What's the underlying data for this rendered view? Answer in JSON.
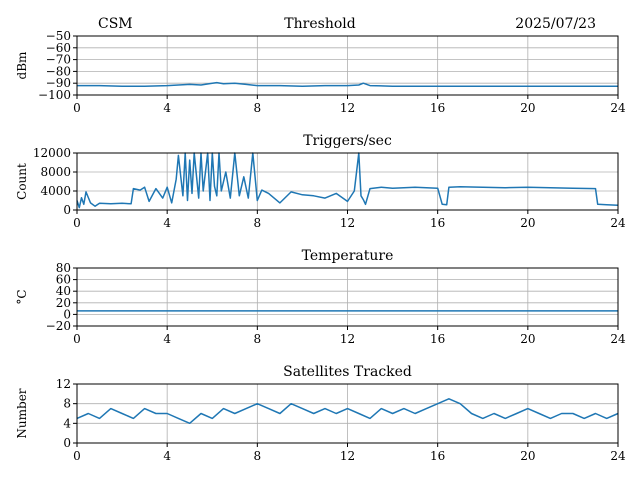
{
  "header": {
    "left": "CSM",
    "center": "Threshold",
    "right": "2025/07/23"
  },
  "line_color": "#1f77b4",
  "grid_color": "#b0b0b0",
  "chart_data": [
    {
      "type": "line",
      "title": "",
      "xlabel": "",
      "ylabel": "dBm",
      "xlim": [
        0,
        24
      ],
      "ylim": [
        -100,
        -50
      ],
      "xticks": [
        "0",
        "4",
        "8",
        "12",
        "16",
        "20",
        "24"
      ],
      "yticks": [
        "−50",
        "−60",
        "−70",
        "−80",
        "−90",
        "−100"
      ],
      "ytick_values": [
        -50,
        -60,
        -70,
        -80,
        -90,
        -100
      ],
      "grid": true,
      "series": [
        {
          "x": [
            0,
            1,
            2,
            3,
            4,
            4.5,
            5,
            5.5,
            6,
            6.2,
            6.5,
            7,
            7.5,
            8,
            9,
            10,
            11,
            12,
            12.5,
            12.7,
            13,
            14,
            15,
            16,
            17,
            18,
            19,
            20,
            21,
            22,
            23,
            24
          ],
          "y": [
            -92,
            -92,
            -92.5,
            -92.5,
            -92,
            -91.5,
            -91,
            -91.5,
            -90,
            -89.5,
            -90.5,
            -90,
            -91,
            -92,
            -92,
            -92.5,
            -92,
            -92,
            -91.5,
            -90,
            -92,
            -92.5,
            -92.5,
            -92.5,
            -92.5,
            -92.5,
            -92.5,
            -92.5,
            -92.5,
            -92.5,
            -92.5,
            -92.5
          ]
        }
      ]
    },
    {
      "type": "line",
      "title": "Triggers/sec",
      "xlabel": "",
      "ylabel": "Count",
      "xlim": [
        0,
        24
      ],
      "ylim": [
        0,
        12000
      ],
      "xticks": [
        "0",
        "4",
        "8",
        "12",
        "16",
        "20",
        "24"
      ],
      "yticks": [
        "0",
        "4000",
        "8000",
        "12000"
      ],
      "ytick_values": [
        0,
        4000,
        8000,
        12000
      ],
      "grid": true,
      "series": [
        {
          "x": [
            0,
            0.1,
            0.2,
            0.3,
            0.4,
            0.6,
            0.8,
            1.0,
            1.5,
            2.0,
            2.4,
            2.5,
            2.8,
            3.0,
            3.2,
            3.5,
            3.8,
            4.0,
            4.2,
            4.4,
            4.5,
            4.7,
            4.8,
            4.9,
            5.0,
            5.1,
            5.2,
            5.4,
            5.5,
            5.6,
            5.8,
            5.9,
            6.0,
            6.1,
            6.2,
            6.3,
            6.4,
            6.6,
            6.8,
            7.0,
            7.2,
            7.4,
            7.6,
            7.8,
            8.0,
            8.2,
            8.5,
            9.0,
            9.5,
            10.0,
            10.5,
            11.0,
            11.5,
            12.0,
            12.3,
            12.5,
            12.6,
            12.7,
            12.8,
            13.0,
            13.5,
            14.0,
            15.0,
            16.0,
            16.2,
            16.4,
            16.5,
            17.0,
            18.0,
            19.0,
            20.0,
            21.0,
            22.0,
            23.0,
            23.1,
            23.5,
            24.0
          ],
          "y": [
            2000,
            500,
            2600,
            1200,
            3800,
            1500,
            800,
            1400,
            1300,
            1400,
            1300,
            4500,
            4200,
            4800,
            1800,
            4500,
            2500,
            4800,
            1500,
            6500,
            11500,
            3000,
            12000,
            2000,
            10500,
            3500,
            12000,
            2500,
            12000,
            4000,
            12000,
            2000,
            12000,
            5000,
            3000,
            12000,
            4000,
            8000,
            2500,
            12000,
            3000,
            7000,
            2500,
            12000,
            2000,
            4200,
            3500,
            1500,
            3800,
            3200,
            3000,
            2500,
            3500,
            1800,
            4000,
            12000,
            3000,
            2200,
            1200,
            4500,
            4800,
            4600,
            4800,
            4600,
            1200,
            1100,
            4800,
            4900,
            4800,
            4700,
            4800,
            4700,
            4600,
            4500,
            1200,
            1100,
            1000
          ]
        }
      ]
    },
    {
      "type": "line",
      "title": "Temperature",
      "xlabel": "",
      "ylabel": "°C",
      "xlim": [
        0,
        24
      ],
      "ylim": [
        -20,
        80
      ],
      "xticks": [
        "0",
        "4",
        "8",
        "12",
        "16",
        "20",
        "24"
      ],
      "yticks": [
        "−20",
        "0",
        "20",
        "40",
        "60",
        "80"
      ],
      "ytick_values": [
        -20,
        0,
        20,
        40,
        60,
        80
      ],
      "grid": true,
      "series": [
        {
          "x": [
            0,
            24
          ],
          "y": [
            6,
            6
          ]
        }
      ]
    },
    {
      "type": "line",
      "title": "Satellites Tracked",
      "xlabel": "",
      "ylabel": "Number",
      "xlim": [
        0,
        24
      ],
      "ylim": [
        0,
        12
      ],
      "xticks": [
        "0",
        "4",
        "8",
        "12",
        "16",
        "20",
        "24"
      ],
      "yticks": [
        "0",
        "4",
        "8",
        "12"
      ],
      "ytick_values": [
        0,
        4,
        8,
        12
      ],
      "grid": true,
      "series": [
        {
          "x": [
            0,
            0.5,
            1,
            1.5,
            2,
            2.5,
            3,
            3.5,
            4,
            4.5,
            5,
            5.5,
            6,
            6.5,
            7,
            7.5,
            8,
            8.5,
            9,
            9.5,
            10,
            10.5,
            11,
            11.5,
            12,
            12.5,
            13,
            13.5,
            14,
            14.5,
            15,
            15.5,
            16,
            16.5,
            17,
            17.5,
            18,
            18.5,
            19,
            19.5,
            20,
            20.5,
            21,
            21.5,
            22,
            22.5,
            23,
            23.5,
            24
          ],
          "y": [
            5,
            6,
            5,
            7,
            6,
            5,
            7,
            6,
            6,
            5,
            4,
            6,
            5,
            7,
            6,
            7,
            8,
            7,
            6,
            8,
            7,
            6,
            7,
            6,
            7,
            6,
            5,
            7,
            6,
            7,
            6,
            7,
            8,
            9,
            8,
            6,
            5,
            6,
            5,
            6,
            7,
            6,
            5,
            6,
            6,
            5,
            6,
            5,
            6
          ]
        }
      ]
    }
  ]
}
